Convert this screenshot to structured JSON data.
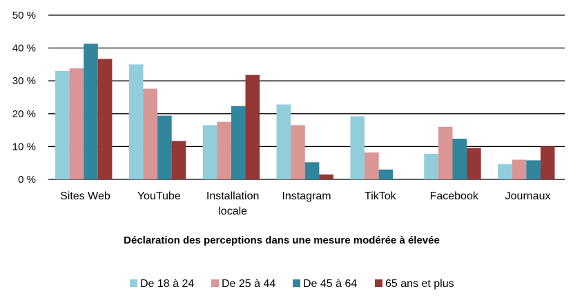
{
  "chart_data": {
    "type": "bar",
    "categories": [
      [
        "Sites Web"
      ],
      [
        "YouTube"
      ],
      [
        "Installation",
        "locale"
      ],
      [
        "Instagram"
      ],
      [
        "TikTok"
      ],
      [
        "Facebook"
      ],
      [
        "Journaux"
      ]
    ],
    "series": [
      {
        "name": "De 18 à 24",
        "color": "#92CDDC",
        "values": [
          33,
          35,
          16.5,
          22.8,
          19.2,
          7.8,
          4.6
        ]
      },
      {
        "name": "De 25 à 44",
        "color": "#D99694",
        "values": [
          33.8,
          27.6,
          17.5,
          16.5,
          8.2,
          16,
          6
        ]
      },
      {
        "name": "De 45 à 64",
        "color": "#31859C",
        "values": [
          41.3,
          19.4,
          22.3,
          5.2,
          3,
          12.4,
          5.8
        ]
      },
      {
        "name": "65 ans et plus",
        "color": "#953735",
        "values": [
          36.7,
          11.7,
          31.8,
          1.5,
          0,
          9.6,
          10
        ]
      }
    ],
    "yticks": [
      "0 %",
      "10 %",
      "20 %",
      "30 %",
      "40 %",
      "50 %"
    ],
    "ylim": [
      0,
      50
    ],
    "xlabel": "Déclaration des perceptions dans une mesure modérée à élevée",
    "ylabel": "",
    "grid": true,
    "legend_position": "bottom"
  }
}
